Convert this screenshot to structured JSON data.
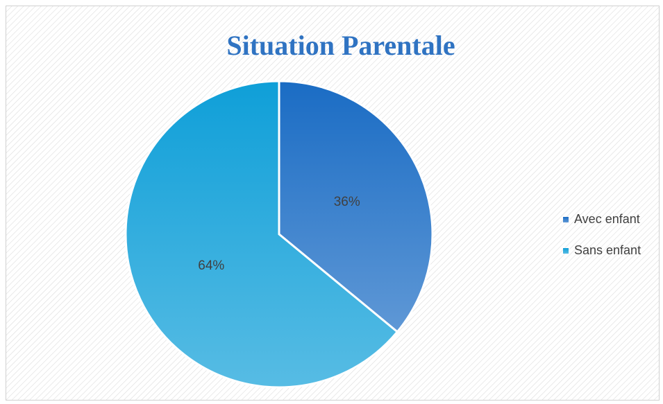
{
  "chart_data": {
    "type": "pie",
    "title": "Situation Parentale",
    "categories": [
      "Avec enfant",
      "Sans enfant"
    ],
    "values": [
      36,
      64
    ],
    "value_labels": [
      "36%",
      "64%"
    ],
    "colors": [
      "#1a6cc4",
      "#0f9fd8"
    ],
    "legend": "right"
  }
}
